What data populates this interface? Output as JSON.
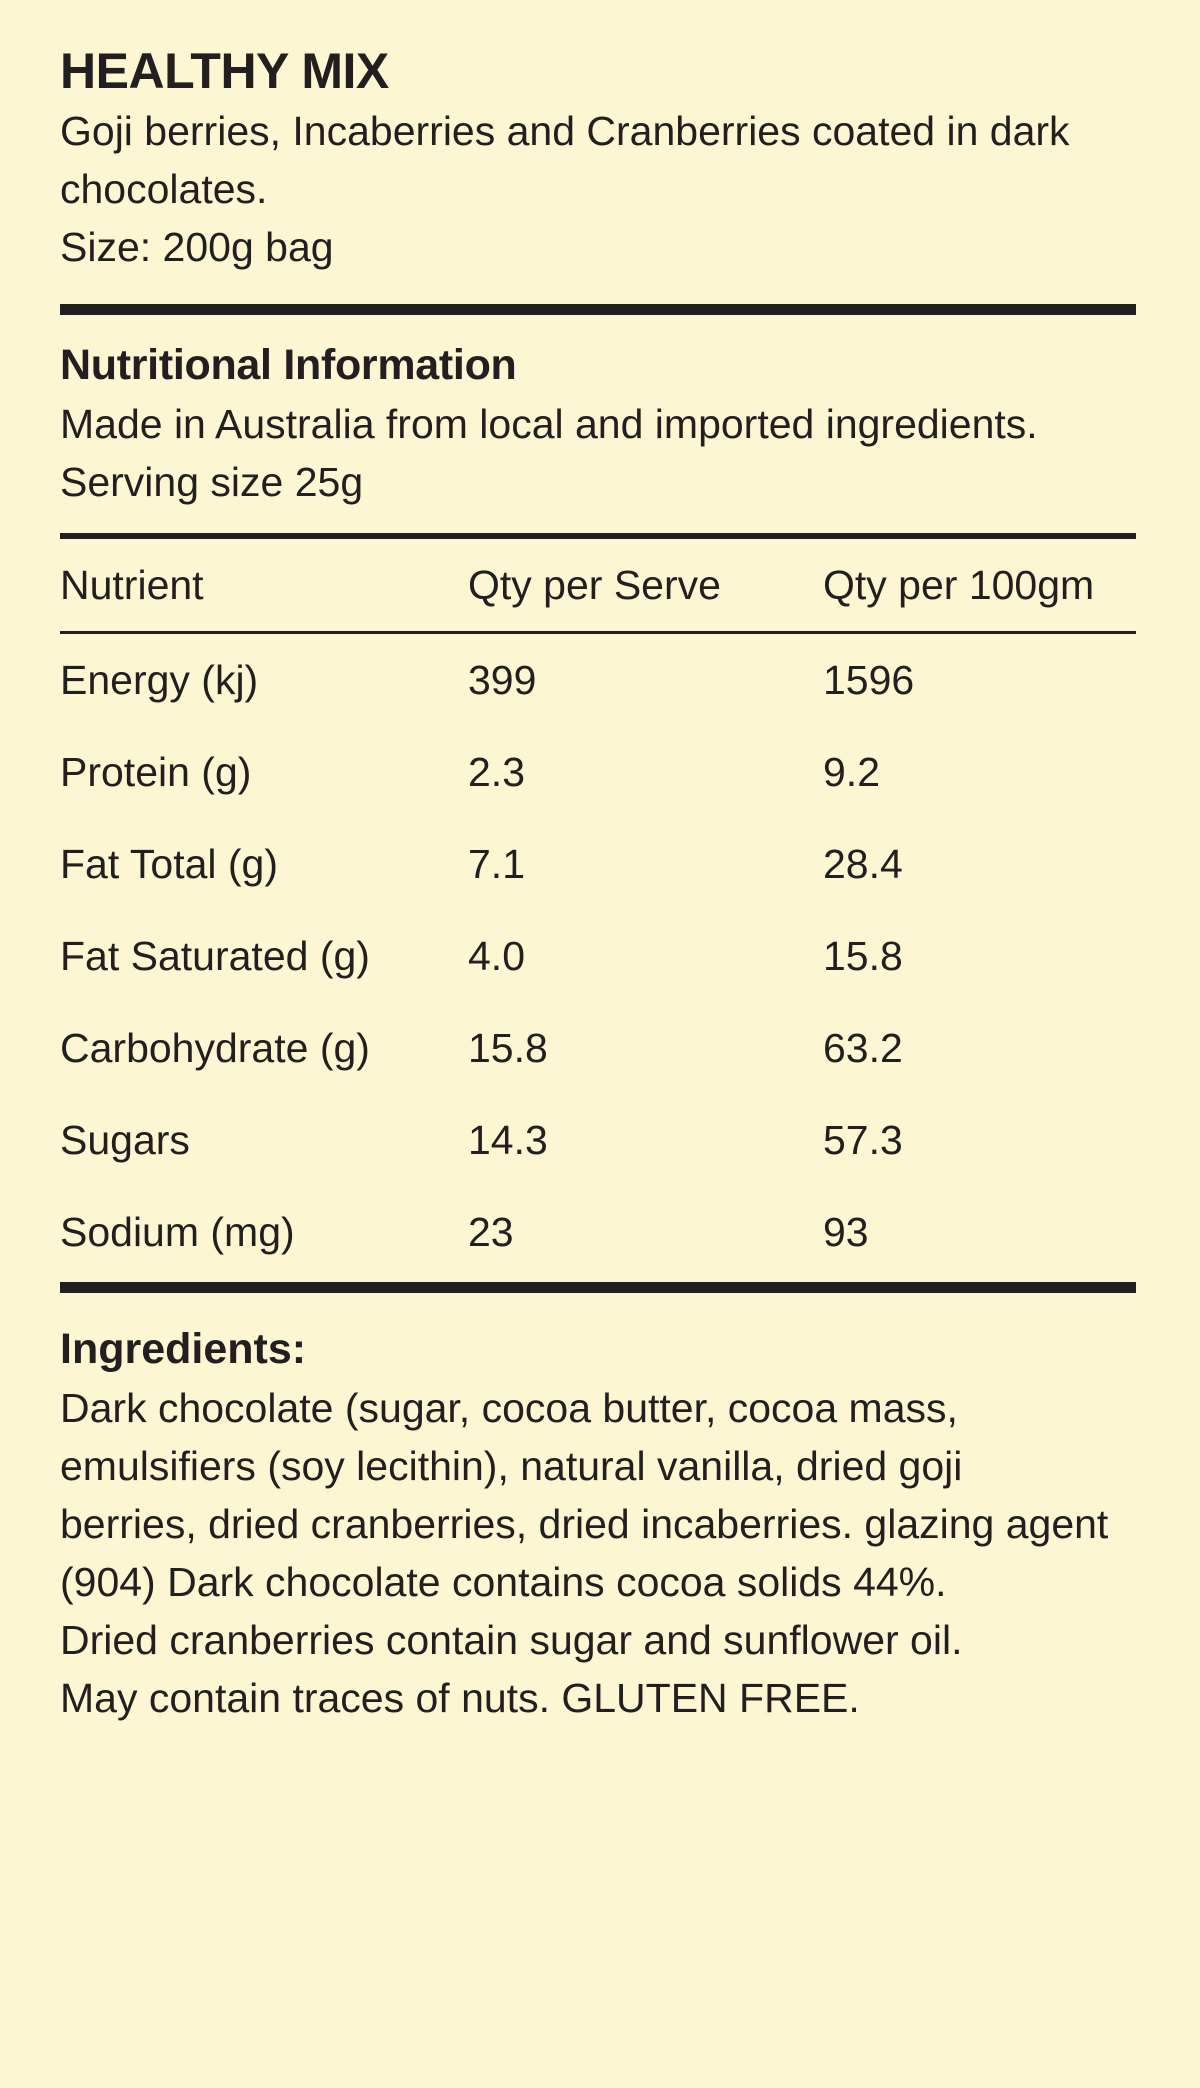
{
  "product": {
    "title": "HEALTHY MIX",
    "description": "Goji berries, Incaberries and Cranberries coated in dark chocolates.",
    "size": "Size: 200g bag"
  },
  "nutrition": {
    "heading": "Nutritional Information",
    "origin": "Made in Australia from local and imported ingredients.",
    "serving": "Serving size 25g",
    "columns": [
      "Nutrient",
      "Qty per Serve",
      "Qty per 100gm"
    ],
    "rows": [
      {
        "nutrient": "Energy (kj)",
        "per_serve": "399",
        "per_100": "1596"
      },
      {
        "nutrient": "Protein (g)",
        "per_serve": "2.3",
        "per_100": "9.2"
      },
      {
        "nutrient": "Fat Total (g)",
        "per_serve": "7.1",
        "per_100": "28.4"
      },
      {
        "nutrient": "Fat Saturated (g)",
        "per_serve": "4.0",
        "per_100": "15.8"
      },
      {
        "nutrient": "Carbohydrate (g)",
        "per_serve": "15.8",
        "per_100": "63.2"
      },
      {
        "nutrient": "Sugars",
        "per_serve": "14.3",
        "per_100": "57.3"
      },
      {
        "nutrient": "Sodium (mg)",
        "per_serve": "23",
        "per_100": "93"
      }
    ]
  },
  "ingredients": {
    "heading": "Ingredients:",
    "lines": [
      "Dark chocolate (sugar, cocoa butter, cocoa mass,",
      "emulsifiers (soy lecithin), natural vanilla, dried goji",
      "berries, dried cranberries, dried incaberries. glazing agent",
      "(904) Dark chocolate contains cocoa solids 44%.",
      "Dried cranberries contain sugar and sunflower oil.",
      "May contain traces of nuts. GLUTEN FREE."
    ]
  },
  "colors": {
    "background": "#fdf6d2",
    "text": "#231f20"
  }
}
